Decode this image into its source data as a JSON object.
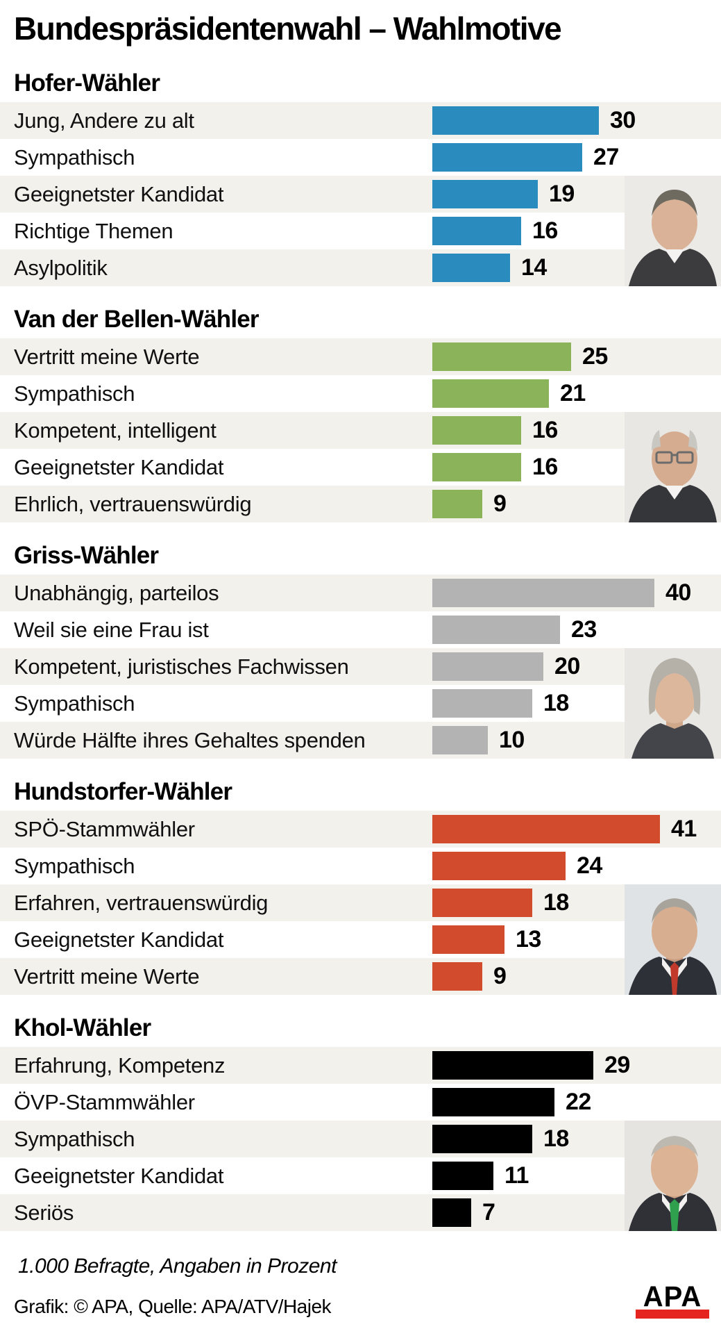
{
  "chart_data": {
    "type": "bar",
    "orientation": "horizontal",
    "units": "percent",
    "title": "Bundespräsidentenwahl – Wahlmotive",
    "note": "1.000 Befragte, Angaben in Prozent",
    "credit": "Grafik: © APA, Quelle: APA/ATV/Hajek",
    "value_range": [
      0,
      41
    ],
    "gridlines": false,
    "value_labels": "right of bar",
    "groups": [
      {
        "name": "Hofer-Wähler",
        "color": "#2a8cbe",
        "photo": "norbert-hofer-photo",
        "categories": [
          "Jung, Andere zu alt",
          "Sympathisch",
          "Geeignetster Kandidat",
          "Richtige Themen",
          "Asylpolitik"
        ],
        "values": [
          30,
          27,
          19,
          16,
          14
        ]
      },
      {
        "name": "Van der Bellen-Wähler",
        "color": "#8bb35a",
        "photo": "van-der-bellen-photo",
        "categories": [
          "Vertritt meine Werte",
          "Sympathisch",
          "Kompetent, intelligent",
          "Geeignetster Kandidat",
          "Ehrlich, vertrauenswürdig"
        ],
        "values": [
          25,
          21,
          16,
          16,
          9
        ]
      },
      {
        "name": "Griss-Wähler",
        "color": "#b3b3b3",
        "photo": "irmgard-griss-photo",
        "categories": [
          "Unabhängig, parteilos",
          "Weil sie eine Frau ist",
          "Kompetent, juristisches Fachwissen",
          "Sympathisch",
          "Würde Hälfte ihres Gehaltes spenden"
        ],
        "values": [
          40,
          23,
          20,
          18,
          10
        ]
      },
      {
        "name": "Hundstorfer-Wähler",
        "color": "#d14b2c",
        "photo": "rudolf-hundstorfer-photo",
        "categories": [
          "SPÖ-Stammwähler",
          "Sympathisch",
          "Erfahren, vertrauenswürdig",
          "Geeignetster Kandidat",
          "Vertritt meine Werte"
        ],
        "values": [
          41,
          24,
          18,
          13,
          9
        ]
      },
      {
        "name": "Khol-Wähler",
        "color": "#000000",
        "photo": "andreas-khol-photo",
        "categories": [
          "Erfahrung, Kompetenz",
          "ÖVP-Stammwähler",
          "Sympathisch",
          "Geeignetster Kandidat",
          "Seriös"
        ],
        "values": [
          29,
          22,
          18,
          11,
          7
        ]
      }
    ]
  },
  "logo": {
    "text": "APA",
    "bar_color": "#e5231f",
    "text_color": "#000000"
  },
  "style": {
    "row_band_color": "#f2f1ec",
    "background": "#ffffff"
  }
}
